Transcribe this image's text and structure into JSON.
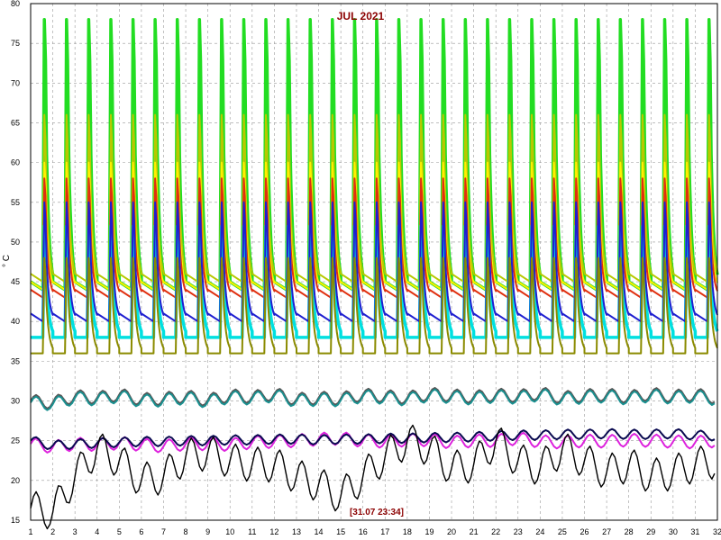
{
  "chart_data": {
    "type": "line",
    "title": "JUL 2021",
    "ylabel": "° C",
    "cursor_readout": "[31.07 23:34]",
    "xlim": [
      1,
      32
    ],
    "ylim": [
      15,
      80
    ],
    "x_ticks": [
      1,
      2,
      3,
      4,
      5,
      6,
      7,
      8,
      9,
      10,
      11,
      12,
      13,
      14,
      15,
      16,
      17,
      18,
      19,
      20,
      21,
      22,
      23,
      24,
      25,
      26,
      27,
      28,
      29,
      30,
      31,
      32
    ],
    "y_ticks": [
      15,
      20,
      25,
      30,
      35,
      40,
      45,
      50,
      55,
      60,
      65,
      70,
      75,
      80
    ],
    "grid": true,
    "legend": "none",
    "daily_profiles": [
      {
        "color": "#22dd22",
        "peak": 78,
        "trough": 44,
        "wide": true
      },
      {
        "color": "#b8c800",
        "peak": 66,
        "trough": 45
      },
      {
        "color": "#ffee00",
        "peak": 60,
        "trough": 44
      },
      {
        "color": "#e03010",
        "peak": 58,
        "trough": 43
      },
      {
        "color": "#00e0e0",
        "peak": 52,
        "trough": 38,
        "wide": true
      },
      {
        "color": "#1f1fd0",
        "peak": 55,
        "trough": 40
      },
      {
        "color": "#8b8b00",
        "peak": 48,
        "trough": 36
      }
    ],
    "series": [
      {
        "color": "#555555",
        "values": [
          30.0,
          29.8,
          30.6,
          30.4,
          30.8,
          30.2,
          30.3,
          30.6,
          30.1,
          30.7,
          30.5,
          30.9,
          30.2,
          30.4,
          30.3,
          30.8,
          30.6,
          30.4,
          30.9,
          30.7,
          30.5,
          30.8,
          30.6,
          31.0,
          30.4,
          30.7,
          30.8,
          30.5,
          30.9,
          30.6,
          30.8,
          30.4
        ]
      },
      {
        "color": "#1a9090",
        "values": [
          29.8,
          29.6,
          30.4,
          30.2,
          30.6,
          30.0,
          30.1,
          30.4,
          29.9,
          30.5,
          30.3,
          30.7,
          30.0,
          30.2,
          30.1,
          30.6,
          30.4,
          30.2,
          30.7,
          30.5,
          30.3,
          30.6,
          30.4,
          30.8,
          30.2,
          30.5,
          30.6,
          30.3,
          30.7,
          30.4,
          30.6,
          30.2
        ]
      },
      {
        "color": "#dd22dd",
        "values": [
          24.6,
          24.2,
          24.6,
          24.5,
          24.7,
          24.5,
          24.3,
          24.6,
          24.6,
          24.5,
          24.8,
          24.9,
          25.0,
          25.2,
          25.3,
          25.0,
          24.9,
          25.1,
          25.1,
          24.8,
          25.0,
          25.0,
          25.3,
          24.9,
          24.8,
          25.0,
          24.9,
          25.1,
          25.0,
          24.9,
          24.8,
          25.0
        ]
      },
      {
        "color": "#0a0a50",
        "values": [
          25.0,
          24.4,
          24.6,
          24.7,
          24.8,
          24.9,
          24.9,
          25.0,
          25.0,
          25.1,
          25.1,
          25.2,
          25.2,
          25.1,
          25.2,
          25.2,
          25.3,
          25.3,
          25.4,
          25.4,
          25.5,
          25.6,
          25.7,
          25.7,
          25.8,
          25.8,
          25.9,
          25.8,
          25.8,
          25.9,
          25.7,
          25.6
        ]
      },
      {
        "color": "#000000",
        "values": [
          16.5,
          16.0,
          20.5,
          24.0,
          22.5,
          20.0,
          20.5,
          23.0,
          23.5,
          22.5,
          22.0,
          22.0,
          20.5,
          19.5,
          18.0,
          20.5,
          23.0,
          25.0,
          24.0,
          21.5,
          22.0,
          25.0,
          22.5,
          21.5,
          24.0,
          22.5,
          21.0,
          22.0,
          20.5,
          21.0,
          22.0,
          22.5
        ]
      }
    ]
  }
}
